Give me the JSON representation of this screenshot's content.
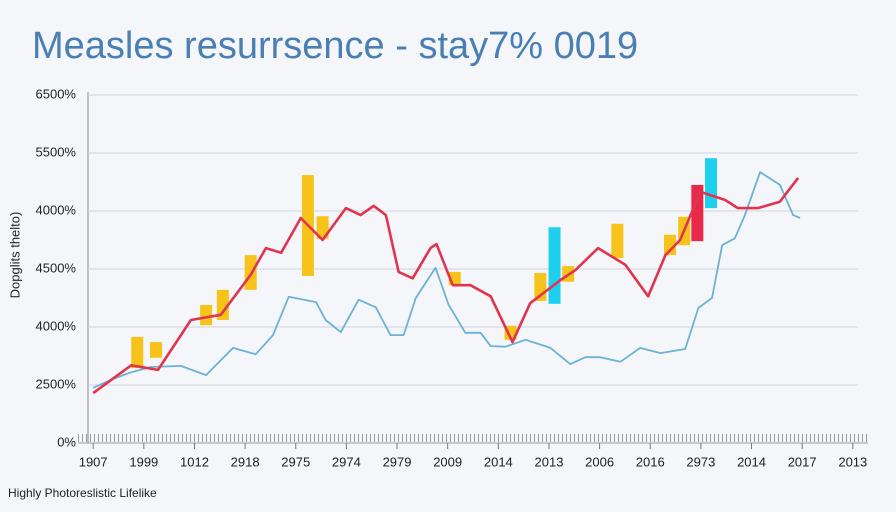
{
  "chart_data": {
    "type": "line",
    "title": "Measles resurrsence - stay7% 0019",
    "ylabel": "Dopglits thelto)",
    "footer": "Highly Photoreslistic Lifelike",
    "xlim": [
      -0.3,
      15.3
    ],
    "ylim": [
      0,
      6
    ],
    "xticks": [
      {
        "value": 0,
        "label": "1907"
      },
      {
        "value": 1,
        "label": "1999"
      },
      {
        "value": 2,
        "label": "1012"
      },
      {
        "value": 3,
        "label": "2918"
      },
      {
        "value": 4,
        "label": "2975"
      },
      {
        "value": 5,
        "label": "2974"
      },
      {
        "value": 6,
        "label": "2979"
      },
      {
        "value": 7,
        "label": "2009"
      },
      {
        "value": 8,
        "label": "2014"
      },
      {
        "value": 9,
        "label": "2013"
      },
      {
        "value": 10,
        "label": "2006"
      },
      {
        "value": 11,
        "label": "2016"
      },
      {
        "value": 12,
        "label": "2973"
      },
      {
        "value": 13,
        "label": "2014"
      },
      {
        "value": 14,
        "label": "2017"
      },
      {
        "value": 15,
        "label": "2013"
      }
    ],
    "yticks": [
      {
        "value": 0,
        "label": "0%"
      },
      {
        "value": 1,
        "label": "2500%"
      },
      {
        "value": 2,
        "label": "4000%"
      },
      {
        "value": 3,
        "label": "4500%"
      },
      {
        "value": 4,
        "label": "4000%"
      },
      {
        "value": 5,
        "label": "5500%"
      },
      {
        "value": 6,
        "label": "6500%"
      }
    ],
    "grid": true,
    "series": [
      {
        "color": "#e0344f",
        "x": [
          0,
          0.75,
          1.28,
          1.93,
          2.52,
          3.11,
          3.41,
          3.71,
          4.1,
          4.53,
          4.99,
          5.28,
          5.54,
          5.78,
          6.03,
          6.31,
          6.66,
          6.78,
          7.1,
          7.45,
          7.85,
          8.28,
          8.63,
          9.23,
          9.52,
          9.97,
          10.51,
          10.96,
          11.3,
          11.59,
          11.99,
          12.48,
          12.73,
          13.13,
          13.56,
          13.92
        ],
        "values": [
          0.86,
          1.34,
          1.26,
          2.12,
          2.21,
          2.9,
          3.36,
          3.28,
          3.88,
          3.5,
          4.05,
          3.93,
          4.09,
          3.93,
          2.95,
          2.84,
          3.36,
          3.43,
          2.72,
          2.72,
          2.53,
          1.74,
          2.41,
          2.81,
          2.98,
          3.36,
          3.07,
          2.53,
          3.24,
          3.5,
          4.33,
          4.19,
          4.05,
          4.05,
          4.16,
          4.57
        ]
      },
      {
        "color": "#6cb2d4",
        "x": [
          0,
          0.35,
          0.75,
          1.14,
          1.73,
          2.23,
          2.76,
          3.21,
          3.55,
          3.86,
          4.4,
          4.59,
          4.89,
          5.24,
          5.58,
          5.87,
          6.13,
          6.37,
          6.76,
          7.02,
          7.35,
          7.65,
          7.85,
          8.14,
          8.54,
          9.03,
          9.42,
          9.72,
          10.01,
          10.41,
          10.8,
          11.2,
          11.69,
          11.95,
          12.22,
          12.42,
          12.67,
          12.87,
          13.17,
          13.56,
          13.82,
          13.96
        ],
        "values": [
          0.95,
          1.09,
          1.22,
          1.31,
          1.33,
          1.17,
          1.64,
          1.53,
          1.86,
          2.52,
          2.43,
          2.12,
          1.91,
          2.47,
          2.34,
          1.86,
          1.86,
          2.5,
          3.02,
          2.38,
          1.9,
          1.9,
          1.67,
          1.66,
          1.78,
          1.64,
          1.36,
          1.48,
          1.48,
          1.4,
          1.64,
          1.55,
          1.62,
          2.33,
          2.5,
          3.41,
          3.53,
          3.93,
          4.67,
          4.45,
          3.93,
          3.88
        ]
      }
    ],
    "bars": [
      {
        "color": "#f7c21a",
        "x": [
          0.87,
          1.24,
          2.23,
          2.56,
          3.11,
          4.24,
          4.53,
          7.14,
          8.24,
          8.83,
          9.38,
          10.35,
          11.39,
          11.67
        ],
        "low": [
          1.29,
          1.47,
          2.03,
          2.12,
          2.64,
          2.88,
          3.52,
          2.72,
          1.78,
          2.45,
          2.78,
          3.19,
          3.24,
          3.41
        ],
        "high": [
          1.83,
          1.74,
          2.38,
          2.64,
          3.24,
          4.62,
          3.91,
          2.95,
          2.02,
          2.93,
          3.05,
          3.78,
          3.59,
          3.9
        ]
      },
      {
        "color": "#1ed0ee",
        "x": [
          9.11,
          12.2
        ],
        "low": [
          2.4,
          4.05
        ],
        "high": [
          3.72,
          4.91
        ]
      },
      {
        "color": "#e8294a",
        "x": [
          11.93
        ],
        "low": [
          3.48
        ],
        "high": [
          4.45
        ]
      }
    ]
  }
}
